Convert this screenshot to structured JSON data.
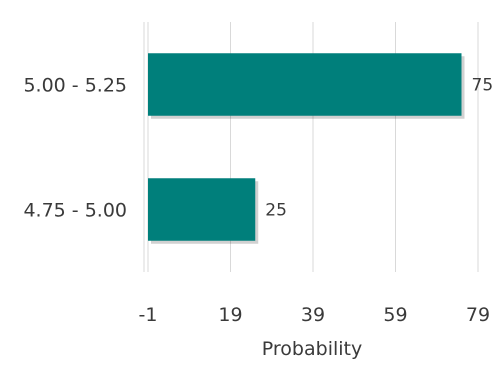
{
  "chart_data": {
    "type": "bar",
    "orientation": "horizontal",
    "categories": [
      "5.00 - 5.25",
      "4.75 - 5.00"
    ],
    "values": [
      75,
      25
    ],
    "data_labels": [
      "75",
      "25"
    ],
    "xlabel": "Probability",
    "ylabel": "",
    "xlim": [
      -1,
      79
    ],
    "xticks": [
      -1,
      19,
      39,
      59,
      79
    ],
    "grid": true,
    "legend": "none",
    "bar_color": "#007f7b",
    "grid_color": "#d9d9d9"
  }
}
